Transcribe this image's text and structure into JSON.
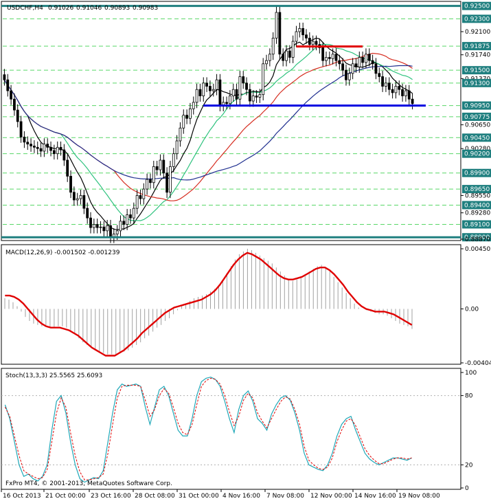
{
  "window_title": "USDCHF,H4",
  "ohlc": [
    "0.91026",
    "0.91046",
    "0.90893",
    "0.90983"
  ],
  "copyright": "FxPro MT4, © 2001-2013, MetaQuotes Software Corp.",
  "colors": {
    "bull_candle": "#000000",
    "bear_candle": "#000000",
    "ma_short": "#000000",
    "ma_medium": "#2ec27e",
    "ma_long": "#d62d20",
    "ma_longer": "#1f2f8f",
    "support_line": "#0000e0",
    "resistance_line": "#e00000",
    "border_lines": "#1f7f7f",
    "grid": "#2ecc40",
    "macd_hist": "#a0a0a0",
    "macd_signal": "#e00000",
    "stoch_main": "#1fa8b8",
    "stoch_signal": "#e00000"
  },
  "chart_data": [
    {
      "type": "candlestick",
      "title": "USDCHF,H4",
      "x_ticks": [
        "16 Oct 2013",
        "21 Oct 00:00",
        "23 Oct 16:00",
        "28 Oct 08:00",
        "31 Oct 00:00",
        "4 Nov 16:00",
        "7 Nov 08:00",
        "12 Nov 00:00",
        "14 Nov 16:00",
        "19 Nov 08:00"
      ],
      "y_ticks": [
        "0.92500",
        "0.92300",
        "0.92100",
        "0.91875",
        "0.91740",
        "0.91500",
        "0.91370",
        "0.91300",
        "0.90950",
        "0.90775",
        "0.90650",
        "0.90450",
        "0.90280",
        "0.90200",
        "0.89900",
        "0.89650",
        "0.89550",
        "0.89400",
        "0.89280",
        "0.89100",
        "0.88900",
        "0.88870"
      ],
      "highlighted_levels": [
        "0.92500",
        "0.92300",
        "0.91875",
        "0.91500",
        "0.91300",
        "0.90950",
        "0.90775",
        "0.90450",
        "0.90200",
        "0.89900",
        "0.89650",
        "0.89400",
        "0.89100",
        "0.88900"
      ],
      "ylim": [
        0.8887,
        0.9255
      ],
      "support_level": 0.9095,
      "resistance_level": 0.9187,
      "close": [
        0.9135,
        0.9118,
        0.9105,
        0.9088,
        0.907,
        0.9046,
        0.9038,
        0.9035,
        0.9032,
        0.903,
        0.9028,
        0.9024,
        0.9035,
        0.903,
        0.9025,
        0.902,
        0.903,
        0.9026,
        0.901,
        0.8985,
        0.896,
        0.8948,
        0.895,
        0.8955,
        0.8935,
        0.892,
        0.8905,
        0.891,
        0.8905,
        0.8906,
        0.89,
        0.8908,
        0.889,
        0.8895,
        0.89,
        0.8915,
        0.891,
        0.8925,
        0.892,
        0.8935,
        0.8955,
        0.895,
        0.8965,
        0.898,
        0.8975,
        0.9,
        0.8995,
        0.901,
        0.899,
        0.896,
        0.9,
        0.902,
        0.904,
        0.906,
        0.908,
        0.9075,
        0.909,
        0.91,
        0.912,
        0.911,
        0.913,
        0.9125,
        0.9118,
        0.912,
        0.9135,
        0.9095,
        0.91,
        0.9098,
        0.911,
        0.912,
        0.9105,
        0.914,
        0.913,
        0.912,
        0.9102,
        0.911,
        0.9108,
        0.9112,
        0.916,
        0.9165,
        0.9175,
        0.92,
        0.924,
        0.9175,
        0.9165,
        0.918,
        0.917,
        0.9195,
        0.921,
        0.9215,
        0.9205,
        0.92,
        0.919,
        0.9195,
        0.919,
        0.9185,
        0.9165,
        0.917,
        0.9168,
        0.9175,
        0.9165,
        0.916,
        0.915,
        0.9135,
        0.9145,
        0.916,
        0.9155,
        0.917,
        0.9162,
        0.9175,
        0.9165,
        0.916,
        0.9145,
        0.914,
        0.9125,
        0.913,
        0.912,
        0.9115,
        0.9125,
        0.912,
        0.911,
        0.9118,
        0.9105,
        0.9098
      ],
      "series": [
        {
          "name": "",
          "values": []
        }
      ]
    },
    {
      "type": "macd",
      "label": "MACD(12,26,9) -0.001502 -0.001239",
      "ylim": [
        -0.00404,
        0.004502
      ],
      "y_ticks": [
        "0.004502",
        "0.00",
        "-0.00404"
      ],
      "histogram": [
        0.0008,
        0.0007,
        0.0005,
        0.0002,
        -0.0002,
        -0.0006,
        -0.0009,
        -0.0011,
        -0.0012,
        -0.0013,
        -0.0013,
        -0.0014,
        -0.0014,
        -0.0013,
        -0.0013,
        -0.0014,
        -0.0016,
        -0.0019,
        -0.0022,
        -0.0025,
        -0.0027,
        -0.0029,
        -0.003,
        -0.0032,
        -0.0033,
        -0.0034,
        -0.0034,
        -0.0034,
        -0.0033,
        -0.0032,
        -0.0031,
        -0.0029,
        -0.0027,
        -0.0025,
        -0.0022,
        -0.002,
        -0.0017,
        -0.0014,
        -0.0012,
        -0.0009,
        -0.0007,
        -0.0004,
        -0.0001,
        0.0002,
        0.0004,
        0.0006,
        0.0008,
        0.0009,
        0.001,
        0.0011,
        0.0013,
        0.0015,
        0.0018,
        0.0022,
        0.0027,
        0.0032,
        0.0037,
        0.0041,
        0.0043,
        0.0045,
        0.0044,
        0.0042,
        0.004,
        0.0038,
        0.0036,
        0.0034,
        0.0031,
        0.0028,
        0.0025,
        0.0022,
        0.0021,
        0.0022,
        0.0024,
        0.0026,
        0.0028,
        0.003,
        0.0032,
        0.0033,
        0.0031,
        0.0028,
        0.0024,
        0.002,
        0.0016,
        0.0012,
        0.0008,
        0.0004,
        0.0001,
        0.0,
        -0.0001,
        -0.0002,
        -0.0003,
        -0.0004,
        -0.0004,
        -0.0005,
        -0.0007,
        -0.0009,
        -0.0011,
        -0.0012,
        -0.0013,
        -0.0015
      ],
      "signal": [
        0.001,
        0.001,
        0.0009,
        0.0007,
        0.0004,
        0.0,
        -0.0004,
        -0.0008,
        -0.0011,
        -0.0013,
        -0.0014,
        -0.0014,
        -0.0014,
        -0.0015,
        -0.0016,
        -0.0018,
        -0.002,
        -0.0023,
        -0.0026,
        -0.0029,
        -0.0031,
        -0.0033,
        -0.0035,
        -0.0035,
        -0.0035,
        -0.0033,
        -0.0031,
        -0.0028,
        -0.0025,
        -0.0022,
        -0.0018,
        -0.0015,
        -0.0012,
        -0.0009,
        -0.0006,
        -0.0003,
        -0.0001,
        0.0001,
        0.0002,
        0.0003,
        0.0004,
        0.0005,
        0.0006,
        0.0007,
        0.0009,
        0.0011,
        0.0014,
        0.0018,
        0.0023,
        0.0028,
        0.0033,
        0.0037,
        0.004,
        0.0042,
        0.0041,
        0.0039,
        0.0037,
        0.0034,
        0.0031,
        0.0028,
        0.0025,
        0.0023,
        0.0022,
        0.0022,
        0.0023,
        0.0024,
        0.0026,
        0.0028,
        0.003,
        0.0031,
        0.0031,
        0.0029,
        0.0026,
        0.0022,
        0.0018,
        0.0013,
        0.0009,
        0.0005,
        0.0002,
        0.0,
        -0.0001,
        -0.0002,
        -0.0002,
        -0.0002,
        -0.0003,
        -0.0004,
        -0.0006,
        -0.0008,
        -0.001,
        -0.0012
      ]
    },
    {
      "type": "stochastic",
      "label": "Stoch(13,3,3) 25.5565 25.6093",
      "ylim": [
        0,
        100
      ],
      "y_ticks": [
        "100",
        "80",
        "20",
        "0"
      ],
      "main": [
        72,
        60,
        40,
        20,
        10,
        12,
        8,
        6,
        10,
        20,
        50,
        75,
        80,
        65,
        40,
        20,
        8,
        5,
        7,
        9,
        8,
        15,
        40,
        65,
        85,
        90,
        88,
        89,
        90,
        88,
        70,
        55,
        70,
        85,
        88,
        80,
        65,
        50,
        45,
        45,
        60,
        80,
        92,
        95,
        96,
        94,
        88,
        75,
        60,
        48,
        68,
        80,
        84,
        75,
        60,
        56,
        50,
        64,
        72,
        78,
        80,
        76,
        65,
        50,
        30,
        20,
        18,
        16,
        15,
        20,
        30,
        45,
        55,
        60,
        62,
        50,
        40,
        30,
        25,
        22,
        20,
        22,
        24,
        26,
        26,
        25,
        24,
        26
      ],
      "signal": [
        70,
        62,
        45,
        28,
        15,
        12,
        10,
        8,
        9,
        16,
        40,
        65,
        78,
        70,
        48,
        28,
        14,
        7,
        7,
        8,
        9,
        12,
        30,
        55,
        78,
        88,
        89,
        89,
        89,
        88,
        76,
        62,
        68,
        80,
        86,
        82,
        70,
        56,
        48,
        46,
        55,
        72,
        88,
        93,
        95,
        94,
        90,
        80,
        66,
        54,
        62,
        76,
        82,
        78,
        65,
        58,
        52,
        60,
        68,
        75,
        79,
        77,
        68,
        55,
        36,
        24,
        20,
        17,
        16,
        18,
        26,
        40,
        50,
        58,
        60,
        54,
        44,
        34,
        28,
        24,
        21,
        21,
        23,
        25,
        26,
        26,
        25,
        26
      ]
    }
  ]
}
